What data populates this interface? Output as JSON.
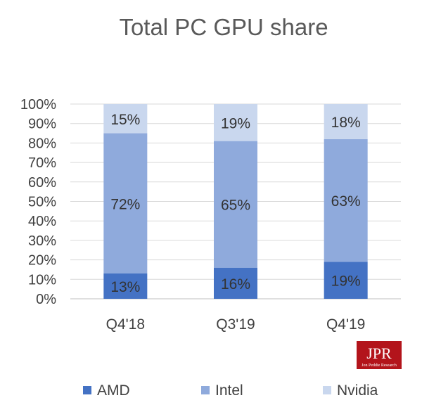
{
  "chart_data": {
    "type": "bar",
    "stacked": true,
    "title": "Total PC GPU share",
    "categories": [
      "Q4'18",
      "Q3'19",
      "Q4'19"
    ],
    "series": [
      {
        "name": "AMD",
        "values": [
          13,
          16,
          19
        ],
        "labels": [
          "13%",
          "16%",
          "19%"
        ],
        "color": "#4472c4"
      },
      {
        "name": "Intel",
        "values": [
          72,
          65,
          63
        ],
        "labels": [
          "72%",
          "65%",
          "63%"
        ],
        "color": "#8faadc"
      },
      {
        "name": "Nvidia",
        "values": [
          15,
          19,
          18
        ],
        "labels": [
          "15%",
          "19%",
          "18%"
        ],
        "color": "#c9d7ee"
      }
    ],
    "ylim": [
      0,
      100
    ],
    "yticks": [
      "0%",
      "10%",
      "20%",
      "30%",
      "40%",
      "50%",
      "60%",
      "70%",
      "80%",
      "90%",
      "100%"
    ],
    "grid": true,
    "legend_position": "bottom"
  },
  "logo": {
    "text": "JPR",
    "subtext": "Jon Peddie Research"
  }
}
